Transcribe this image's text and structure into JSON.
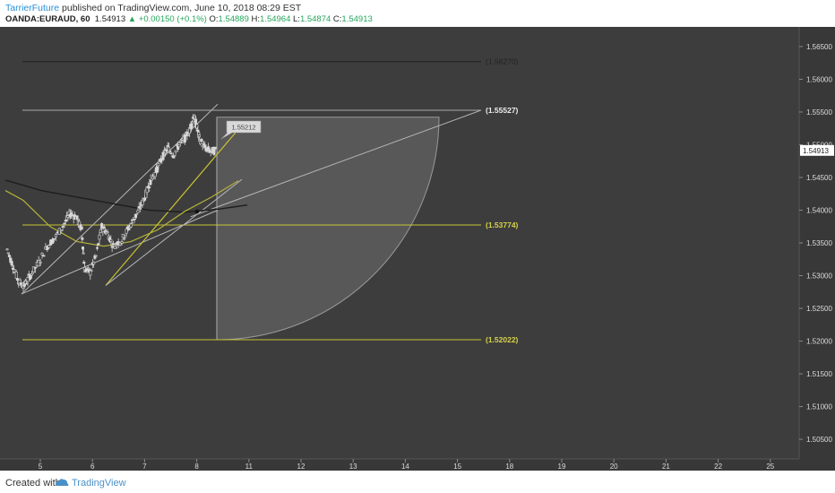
{
  "header": {
    "author": "TarrierFuture",
    "published": "published on TradingView.com, June 10, 2018 08:29 EST",
    "symbol": "OANDA:EURAUD, 60",
    "last": "1.54913",
    "change": "▲ +0.00150 (+0.1%)",
    "open_label": "O:",
    "open": "1.54889",
    "high_label": "H:",
    "high": "1.54964",
    "low_label": "L:",
    "low": "1.54874",
    "close_label": "C:",
    "close": "1.54913"
  },
  "footer": {
    "created": "Created with",
    "brand": "TradingView"
  },
  "colors": {
    "background": "#3d3d3d",
    "axis_bg": "#383838",
    "hline_yellow": "#c8c432",
    "drawing_gray": "#9a9a9a",
    "ma_black": "#1e1e1e",
    "ma_yellow": "#b4b23a",
    "candle": "#d8d8d8"
  },
  "chart_data": {
    "type": "candlestick",
    "symbol": "OANDA:EURAUD",
    "interval": "60",
    "x_tick_labels": [
      "5",
      "6",
      "7",
      "8",
      "11",
      "12",
      "13",
      "14",
      "15",
      "18",
      "19",
      "20",
      "21",
      "22",
      "25"
    ],
    "y_tick_labels": [
      "1.50500",
      "1.51000",
      "1.51500",
      "1.52000",
      "1.52500",
      "1.53000",
      "1.53500",
      "1.54000",
      "1.54500",
      "1.55000",
      "1.55500",
      "1.56000",
      "1.56500"
    ],
    "ylim": [
      1.502,
      1.568
    ],
    "last_price_label": "1.54913",
    "levels": [
      {
        "label": "(1.56270)",
        "value": 1.5627,
        "color": "gray"
      },
      {
        "label": "(1.55527)",
        "value": 1.55527,
        "color": "gray"
      },
      {
        "label": "(1.53774)",
        "value": 1.53774,
        "color": "yellow"
      },
      {
        "label": "(1.52022)",
        "value": 1.52022,
        "color": "yellow"
      }
    ],
    "callout_label": "1.55212",
    "price_path": [
      [
        0,
        1.534
      ],
      [
        0.1,
        1.5315
      ],
      [
        0.2,
        1.529
      ],
      [
        0.3,
        1.5285
      ],
      [
        0.4,
        1.53
      ],
      [
        0.55,
        1.532
      ],
      [
        0.7,
        1.5345
      ],
      [
        0.85,
        1.536
      ],
      [
        1.0,
        1.538
      ],
      [
        1.1,
        1.5395
      ],
      [
        1.2,
        1.539
      ],
      [
        1.3,
        1.537
      ],
      [
        1.35,
        1.531
      ],
      [
        1.45,
        1.5305
      ],
      [
        1.55,
        1.533
      ],
      [
        1.65,
        1.5375
      ],
      [
        1.75,
        1.5365
      ],
      [
        1.85,
        1.5345
      ],
      [
        2.0,
        1.5355
      ],
      [
        2.1,
        1.537
      ],
      [
        2.2,
        1.5385
      ],
      [
        2.3,
        1.54
      ],
      [
        2.4,
        1.542
      ],
      [
        2.5,
        1.5445
      ],
      [
        2.6,
        1.546
      ],
      [
        2.7,
        1.548
      ],
      [
        2.8,
        1.5495
      ],
      [
        2.9,
        1.5485
      ],
      [
        3.0,
        1.55
      ],
      [
        3.1,
        1.551
      ],
      [
        3.2,
        1.5525
      ],
      [
        3.25,
        1.5545
      ],
      [
        3.3,
        1.553
      ],
      [
        3.35,
        1.551
      ],
      [
        3.45,
        1.5495
      ],
      [
        3.55,
        1.549
      ],
      [
        3.65,
        1.5491
      ]
    ]
  }
}
